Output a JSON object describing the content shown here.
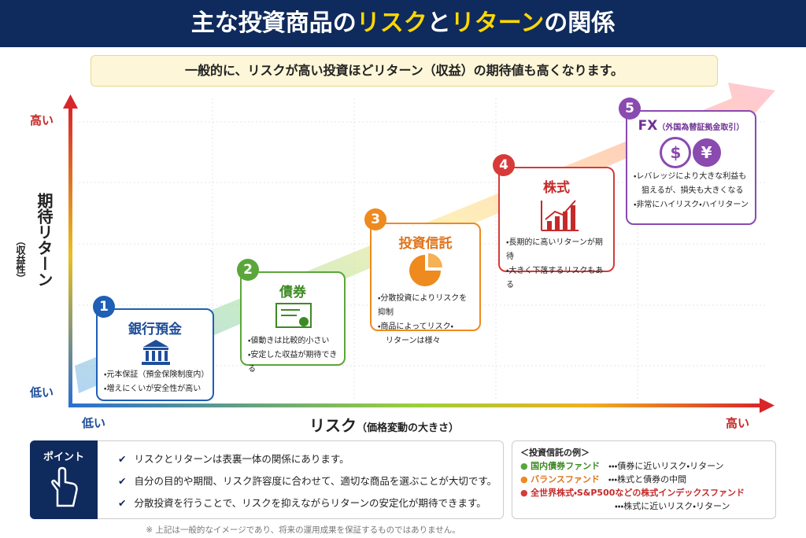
{
  "header": {
    "title_parts": [
      "主な投資商品の",
      "リスク",
      "と",
      "リターン",
      "の関係"
    ]
  },
  "subtitle": "一般的に、リスクが高い投資ほどリターン（収益）の期待値も高くなります。",
  "axes": {
    "y_high": "高い",
    "y_low": "低い",
    "y_label": "期待リターン",
    "y_sub": "（収益性）",
    "x_low": "低い",
    "x_high": "高い",
    "x_label": "リスク",
    "x_sub": "（価格変動の大きさ）"
  },
  "products": [
    {
      "number": "1",
      "name": "銀行預金",
      "notes": [
        "・元本保証（預金保険制度内）",
        "・増えにくいが安全性が高い"
      ]
    },
    {
      "number": "2",
      "name": "債券",
      "notes": [
        "・値動きは比較的小さい",
        "・安定した収益が期待できる"
      ]
    },
    {
      "number": "3",
      "name": "投資信託",
      "notes": [
        "・分散投資によりリスクを抑制",
        "・商品によってリスク・",
        "　リターンは様々"
      ]
    },
    {
      "number": "4",
      "name": "株式",
      "notes": [
        "・長期的に高いリターンが期待",
        "・大きく下落するリスクもある"
      ]
    },
    {
      "number": "5",
      "name": "FX",
      "name_sub": "（外国為替証拠金取引）",
      "icon_labels": [
        "$",
        "¥"
      ],
      "notes": [
        "・レバレッジにより大きな利益も",
        "　狙えるが、損失も大きくなる",
        "・非常にハイリスク・ハイリターン"
      ]
    }
  ],
  "point": {
    "label": "ポイント",
    "items": [
      "リスクとリターンは表裏一体の関係にあります。",
      "自分の目的や期間、リスク許容度に合わせて、適切な商品を選ぶことが大切です。",
      "分散投資を行うことで、リスクを抑えながらリターンの安定化が期待できます。"
    ]
  },
  "examples": {
    "title": "＜投資信託の例＞",
    "items": [
      {
        "name": "国内債券ファンド",
        "desc": "・・・債券に近いリスク・リターン"
      },
      {
        "name": "バランスファンド",
        "desc": "・・・株式と債券の中間"
      },
      {
        "name": "全世界株式・S&P500などの株式インデックスファンド",
        "desc": "・・・株式に近いリスク・リターン"
      }
    ]
  },
  "footnote": "※ 上記は一般的なイメージであり、将来の運用成果を保証するものではありません。"
}
